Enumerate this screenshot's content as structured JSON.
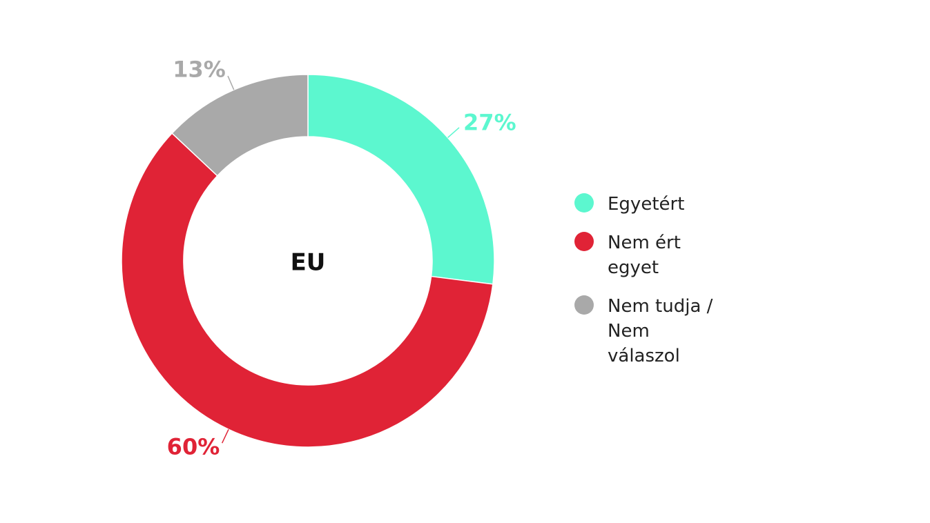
{
  "chart_data": {
    "type": "donut",
    "center_label": "EU",
    "categories": [
      "Egyetért",
      "Nem ért egyet",
      "Nem tudja / Nem válaszol"
    ],
    "values": [
      27,
      60,
      13
    ],
    "value_labels": [
      "27%",
      "60%",
      "13%"
    ],
    "colors": [
      "#5cf7cf",
      "#e02336",
      "#a9a9a9"
    ],
    "legend": "right"
  }
}
